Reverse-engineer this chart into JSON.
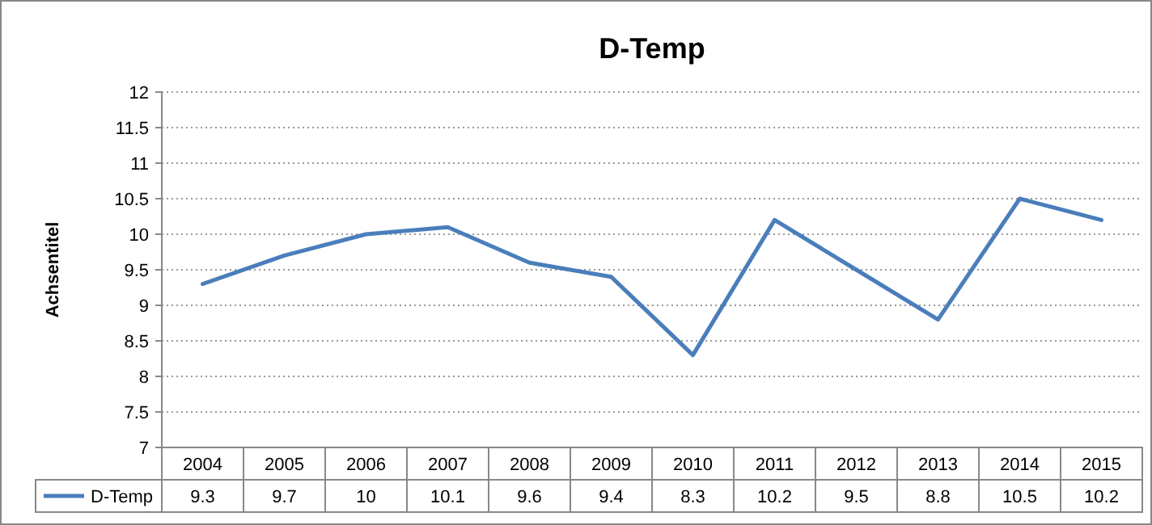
{
  "chart_data": {
    "type": "line",
    "title": "D-Temp",
    "ylabel": "Achsentitel",
    "categories": [
      "2004",
      "2005",
      "2006",
      "2007",
      "2008",
      "2009",
      "2010",
      "2011",
      "2012",
      "2013",
      "2014",
      "2015"
    ],
    "series": [
      {
        "name": "D-Temp",
        "color": "#4a7ebb",
        "values": [
          9.3,
          9.7,
          10,
          10.1,
          9.6,
          9.4,
          8.3,
          10.2,
          9.5,
          8.8,
          10.5,
          10.2
        ]
      }
    ],
    "ylim": [
      7,
      12
    ],
    "yticks": [
      7,
      7.5,
      8,
      8.5,
      9,
      9.5,
      10,
      10.5,
      11,
      11.5,
      12
    ],
    "grid": "y",
    "legend": "bottom",
    "data_labels": true,
    "marker": "none",
    "line_style": "solid"
  }
}
